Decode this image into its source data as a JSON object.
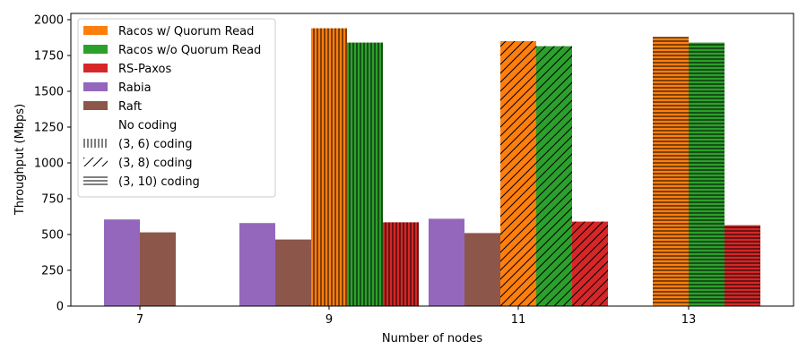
{
  "chart_data": {
    "type": "bar",
    "xlabel": "Number of nodes",
    "ylabel": "Throughput (Mbps)",
    "ylim": [
      0,
      2000
    ],
    "yticks": [
      0,
      250,
      500,
      750,
      1000,
      1250,
      1500,
      1750,
      2000
    ],
    "categories": [
      "7",
      "9",
      "11",
      "13"
    ],
    "series": [
      {
        "name": "Racos w/ Quorum Read",
        "color": "#ff7f0e",
        "values": [
          null,
          1940,
          1850,
          1880
        ],
        "coding": [
          null,
          "(3, 6) coding",
          "(3, 8) coding",
          "(3, 10) coding"
        ]
      },
      {
        "name": "Racos w/o Quorum Read",
        "color": "#2ca02c",
        "values": [
          null,
          1840,
          1815,
          1840
        ],
        "coding": [
          null,
          "(3, 6) coding",
          "(3, 8) coding",
          "(3, 10) coding"
        ]
      },
      {
        "name": "RS-Paxos",
        "color": "#d62728",
        "values": [
          null,
          585,
          590,
          565
        ],
        "coding": [
          null,
          "(3, 6) coding",
          "(3, 8) coding",
          "(3, 10) coding"
        ]
      },
      {
        "name": "Rabia",
        "color": "#9467bd",
        "values": [
          605,
          580,
          610,
          null
        ],
        "coding": [
          "No coding",
          "No coding",
          "No coding",
          null
        ]
      },
      {
        "name": "Raft",
        "color": "#8c564b",
        "values": [
          515,
          465,
          510,
          null
        ],
        "coding": [
          "No coding",
          "No coding",
          "No coding",
          null
        ]
      }
    ],
    "coding_legend": [
      "No coding",
      "(3, 6) coding",
      "(3, 8) coding",
      "(3, 10) coding"
    ],
    "legend_position": "top-left",
    "grid": false
  }
}
